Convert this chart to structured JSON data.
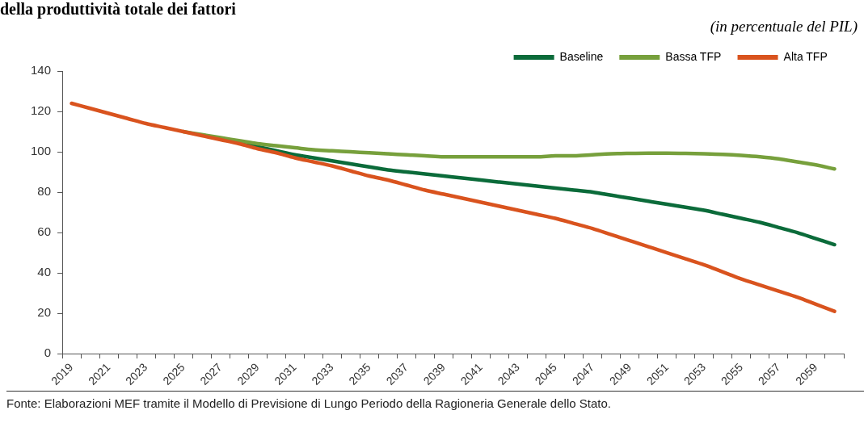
{
  "chart_data": {
    "type": "line",
    "title": "della produttività totale dei fattori",
    "subtitle": "(in percentuale del PIL)",
    "categories": [
      "2019",
      null,
      "2021",
      null,
      "2023",
      null,
      "2025",
      null,
      "2027",
      null,
      "2029",
      null,
      "2031",
      null,
      "2033",
      null,
      "2035",
      null,
      "2037",
      null,
      "2039",
      null,
      "2041",
      null,
      "2043",
      null,
      "2045",
      null,
      "2047",
      null,
      "2049",
      null,
      "2051",
      null,
      "2053",
      null,
      "2055",
      null,
      "2057",
      null,
      "2059",
      null
    ],
    "series": [
      {
        "name": "Baseline",
        "color": "#0b6b3a",
        "values": [
          null,
          null,
          null,
          null,
          null,
          null,
          null,
          null,
          106.5,
          104.5,
          102.5,
          100.5,
          98.5,
          97,
          95.5,
          94,
          92.5,
          91,
          90,
          89,
          88,
          87,
          86,
          85,
          84,
          83,
          82,
          81,
          80,
          78.5,
          77,
          75.5,
          74,
          72.5,
          71,
          69,
          67,
          65,
          62.5,
          60,
          57,
          54
        ]
      },
      {
        "name": "Bassa TFP",
        "color": "#77a03c",
        "values": [
          null,
          null,
          null,
          null,
          null,
          null,
          110,
          108.5,
          107,
          105.5,
          104,
          103,
          102,
          101,
          100.5,
          100,
          99.5,
          99,
          98.5,
          98,
          97.5,
          97.5,
          97.5,
          97.5,
          97.5,
          97.5,
          98,
          98,
          98.5,
          99,
          99.2,
          99.3,
          99.3,
          99.2,
          99,
          98.7,
          98.2,
          97.5,
          96.5,
          95,
          93.5,
          91.5
        ]
      },
      {
        "name": "Alta TFP",
        "color": "#d9531e",
        "values": [
          124,
          121.5,
          119,
          116.5,
          114,
          112,
          110,
          108,
          106,
          104,
          101.5,
          99.5,
          97,
          95,
          93,
          90.5,
          88,
          86,
          83.5,
          81,
          79,
          77,
          75,
          73,
          71,
          69,
          67,
          64.5,
          62,
          59,
          56,
          53,
          50,
          47,
          44,
          40.5,
          37,
          34,
          31,
          28,
          24.5,
          21
        ]
      }
    ],
    "ylim": [
      0,
      140
    ],
    "yticks": [
      0,
      20,
      40,
      60,
      80,
      100,
      120,
      140
    ],
    "legend": "top right",
    "annotations": [
      "Fonte: Elaborazioni MEF tramite il Modello di Previsione di Lungo Periodo della Ragioneria Generale dello Stato."
    ]
  }
}
